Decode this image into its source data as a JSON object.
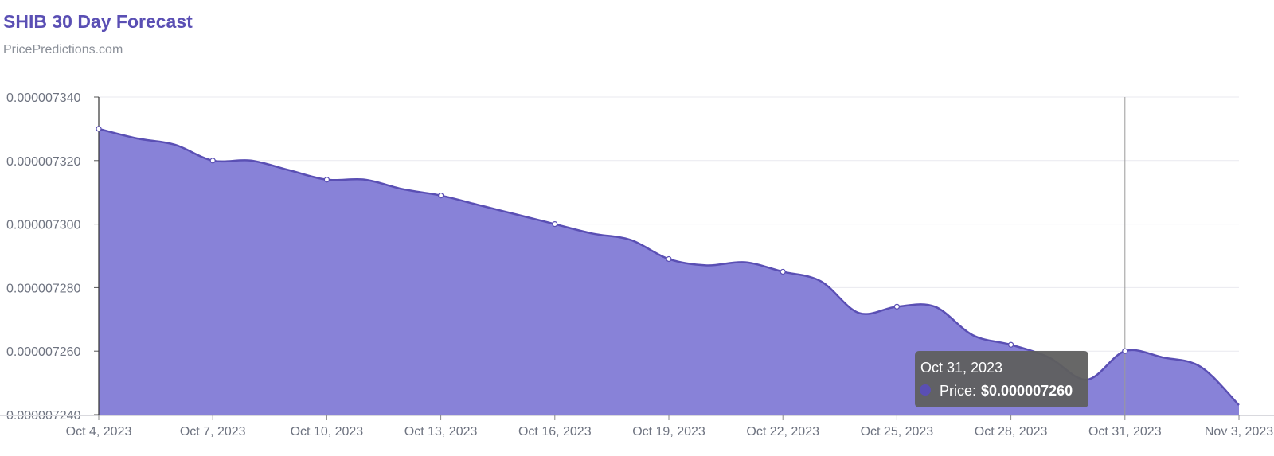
{
  "chart_data": {
    "type": "area",
    "title": "SHIB 30 Day Forecast",
    "subtitle": "PricePredictions.com",
    "xlabel": "",
    "ylabel": "",
    "grid": true,
    "legend": "none",
    "ylim": [
      7.24e-06,
      7.34e-06
    ],
    "y_ticks": [
      {
        "value": 7.34e-06,
        "label": "0.000007340"
      },
      {
        "value": 7.32e-06,
        "label": "0.000007320"
      },
      {
        "value": 7.3e-06,
        "label": "0.000007300"
      },
      {
        "value": 7.28e-06,
        "label": "0.000007280"
      },
      {
        "value": 7.26e-06,
        "label": "0.000007260"
      },
      {
        "value": 7.24e-06,
        "label": "0.000007240"
      }
    ],
    "x_ticks": [
      "Oct 4, 2023",
      "Oct 7, 2023",
      "Oct 10, 2023",
      "Oct 13, 2023",
      "Oct 16, 2023",
      "Oct 19, 2023",
      "Oct 22, 2023",
      "Oct 25, 2023",
      "Oct 28, 2023",
      "Oct 31, 2023",
      "Nov 3, 2023"
    ],
    "x": [
      "Oct 4, 2023",
      "Oct 5, 2023",
      "Oct 6, 2023",
      "Oct 7, 2023",
      "Oct 8, 2023",
      "Oct 9, 2023",
      "Oct 10, 2023",
      "Oct 11, 2023",
      "Oct 12, 2023",
      "Oct 13, 2023",
      "Oct 14, 2023",
      "Oct 15, 2023",
      "Oct 16, 2023",
      "Oct 17, 2023",
      "Oct 18, 2023",
      "Oct 19, 2023",
      "Oct 20, 2023",
      "Oct 21, 2023",
      "Oct 22, 2023",
      "Oct 23, 2023",
      "Oct 24, 2023",
      "Oct 25, 2023",
      "Oct 26, 2023",
      "Oct 27, 2023",
      "Oct 28, 2023",
      "Oct 29, 2023",
      "Oct 30, 2023",
      "Oct 31, 2023",
      "Nov 1, 2023",
      "Nov 2, 2023",
      "Nov 3, 2023"
    ],
    "series": [
      {
        "name": "Price",
        "values": [
          7.33e-06,
          7.327e-06,
          7.325e-06,
          7.32e-06,
          7.32e-06,
          7.317e-06,
          7.314e-06,
          7.314e-06,
          7.311e-06,
          7.309e-06,
          7.306e-06,
          7.303e-06,
          7.3e-06,
          7.297e-06,
          7.295e-06,
          7.289e-06,
          7.287e-06,
          7.288e-06,
          7.285e-06,
          7.282e-06,
          7.272e-06,
          7.274e-06,
          7.274e-06,
          7.265e-06,
          7.262e-06,
          7.258e-06,
          7.251e-06,
          7.26e-06,
          7.258e-06,
          7.255e-06,
          7.243e-06
        ]
      }
    ],
    "marked_points": [
      "Oct 4, 2023",
      "Oct 7, 2023",
      "Oct 10, 2023",
      "Oct 13, 2023",
      "Oct 16, 2023",
      "Oct 19, 2023",
      "Oct 22, 2023",
      "Oct 25, 2023",
      "Oct 28, 2023",
      "Oct 31, 2023"
    ],
    "colors": {
      "fill": "#8882d8",
      "line": "#5a4fb4",
      "grid": "#e9e9ef",
      "tooltip_bg": "#5f5f5f"
    },
    "tooltip": {
      "date": "Oct 31, 2023",
      "label": "Price:",
      "value": "$0.000007260",
      "at": "Oct 31, 2023"
    }
  }
}
